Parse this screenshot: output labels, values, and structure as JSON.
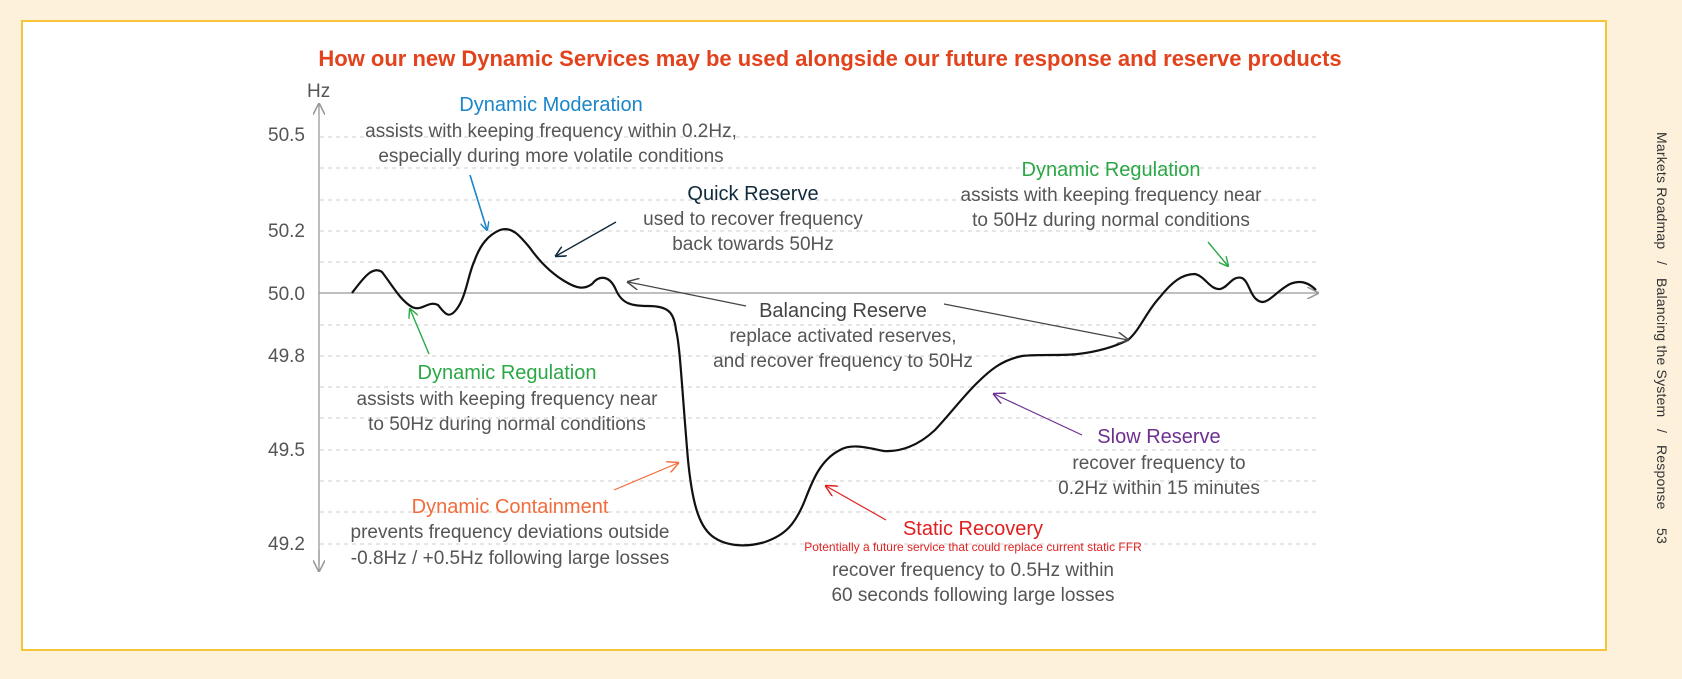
{
  "title": "How our new Dynamic Services may be used alongside our future response and reserve products",
  "sidebar": {
    "parts": [
      "Markets Roadmap",
      "Balancing the System",
      "Response"
    ],
    "separator": "/",
    "page_number": "53"
  },
  "axis": {
    "unit_label": "Hz",
    "baseline": 50.0,
    "ticks": [
      {
        "value": 50.5,
        "label": "50.5"
      },
      {
        "value": 50.2,
        "label": "50.2"
      },
      {
        "value": 50.0,
        "label": "50.0"
      },
      {
        "value": 49.8,
        "label": "49.8"
      },
      {
        "value": 49.5,
        "label": "49.5"
      },
      {
        "value": 49.2,
        "label": "49.2"
      }
    ]
  },
  "services": {
    "dynamic_moderation": {
      "title": "Dynamic Moderation",
      "lines": [
        "assists with keeping frequency within 0.2Hz,",
        "especially during more volatile conditions"
      ]
    },
    "quick_reserve": {
      "title": "Quick Reserve",
      "lines": [
        "used to recover frequency",
        "back towards 50Hz"
      ]
    },
    "dynamic_regulation_right": {
      "title": "Dynamic Regulation",
      "lines": [
        "assists with keeping frequency near",
        "to 50Hz during normal conditions"
      ]
    },
    "balancing_reserve": {
      "title": "Balancing Reserve",
      "lines": [
        "replace activated reserves,",
        "and recover frequency to 50Hz"
      ]
    },
    "dynamic_regulation_left": {
      "title": "Dynamic Regulation",
      "lines": [
        "assists with keeping frequency near",
        "to 50Hz during normal conditions"
      ]
    },
    "slow_reserve": {
      "title": "Slow Reserve",
      "lines": [
        "recover frequency to",
        "0.2Hz within 15 minutes"
      ]
    },
    "dynamic_containment": {
      "title": "Dynamic Containment",
      "lines": [
        "prevents frequency deviations outside",
        "-0.8Hz / +0.5Hz following large losses"
      ]
    },
    "static_recovery": {
      "title": "Static Recovery",
      "note": "Potentially a future service that could replace current static FFR",
      "lines": [
        "recover frequency to 0.5Hz within",
        "60 seconds following large losses"
      ]
    }
  },
  "colors": {
    "title": "#e2421c",
    "dynamic_moderation": "#1a86c8",
    "quick_reserve": "#0f2a3b",
    "dynamic_regulation": "#2aa845",
    "balancing_reserve": "#444444",
    "slow_reserve": "#6e2f91",
    "dynamic_containment": "#f26b3a",
    "static_recovery": "#e02020",
    "body_text": "#555555",
    "axis": "#999999",
    "grid": "#cccccc",
    "curve": "#111111"
  }
}
